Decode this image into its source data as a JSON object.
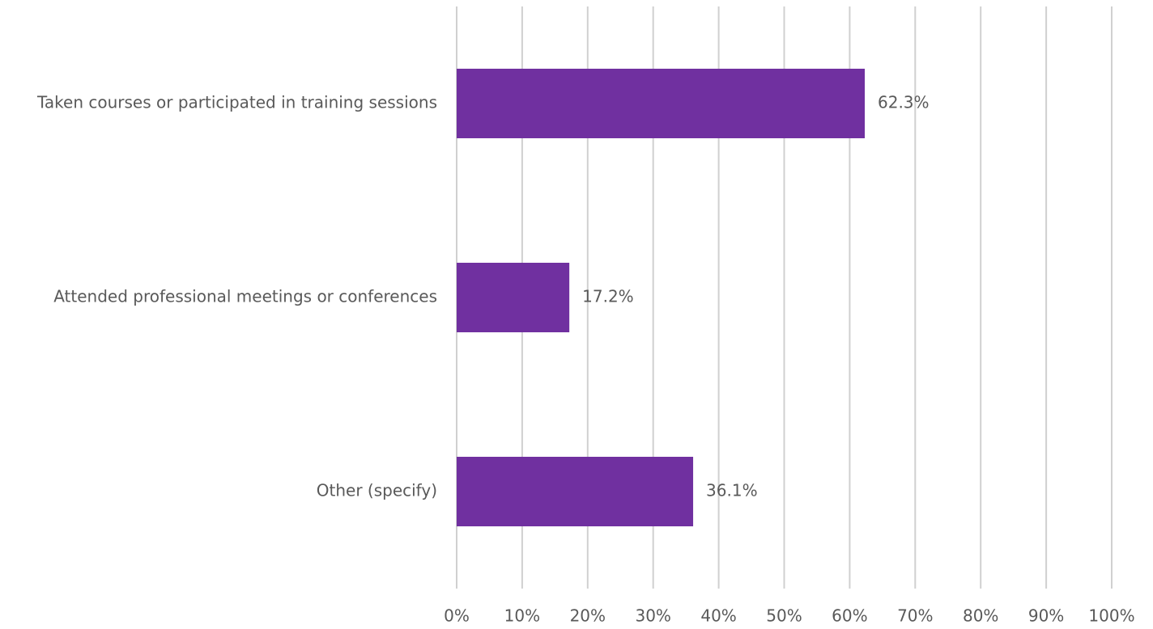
{
  "chart_data": {
    "type": "bar",
    "orientation": "horizontal",
    "categories": [
      "Taken courses or participated in training sessions",
      "Attended professional meetings or conferences",
      "Other (specify)"
    ],
    "values": [
      62.3,
      17.2,
      36.1
    ],
    "value_labels": [
      "62.3%",
      "17.2%",
      "36.1%"
    ],
    "color": "#7030a0",
    "xlim": [
      0,
      100
    ],
    "xticks": [
      {
        "value": 0,
        "label": "0%"
      },
      {
        "value": 10,
        "label": "10%"
      },
      {
        "value": 20,
        "label": "20%"
      },
      {
        "value": 30,
        "label": "30%"
      },
      {
        "value": 40,
        "label": "40%"
      },
      {
        "value": 50,
        "label": "50%"
      },
      {
        "value": 60,
        "label": "60%"
      },
      {
        "value": 70,
        "label": "70%"
      },
      {
        "value": 80,
        "label": "80%"
      },
      {
        "value": 90,
        "label": "90%"
      },
      {
        "value": 100,
        "label": "100%"
      }
    ],
    "grid": true
  }
}
